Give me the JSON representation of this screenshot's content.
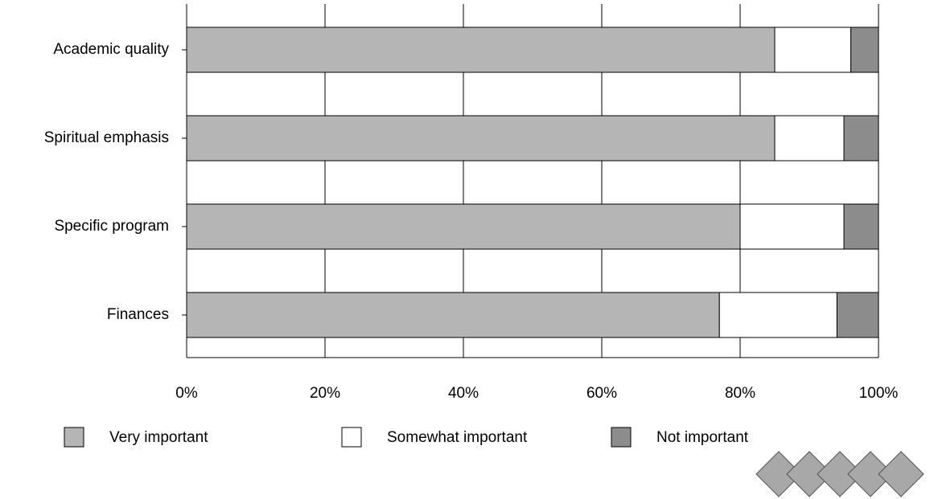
{
  "chart_data": {
    "type": "stacked-bar-horizontal",
    "categories": [
      "Academic quality",
      "Spiritual emphasis",
      "Specific program",
      "Finances"
    ],
    "series": [
      {
        "name": "Very important",
        "color": "#b5b5b5",
        "values": [
          85,
          85,
          80,
          77
        ]
      },
      {
        "name": "Somewhat important",
        "color": "#ffffff",
        "values": [
          11,
          10,
          15,
          17
        ]
      },
      {
        "name": "Not important",
        "color": "#8c8c8c",
        "values": [
          4,
          5,
          5,
          6
        ]
      }
    ],
    "xlim": [
      0,
      100
    ],
    "xticks": [
      {
        "value": 0,
        "label": "0%"
      },
      {
        "value": 20,
        "label": "20%"
      },
      {
        "value": 40,
        "label": "40%"
      },
      {
        "value": 60,
        "label": "60%"
      },
      {
        "value": 80,
        "label": "80%"
      },
      {
        "value": 100,
        "label": "100%"
      }
    ],
    "grid": true
  }
}
